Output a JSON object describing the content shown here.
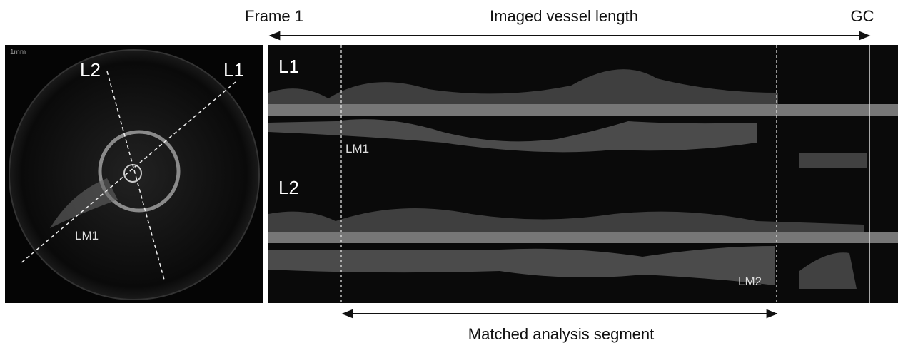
{
  "header": {
    "left": "Frame 1",
    "center": "Imaged vessel length",
    "right": "GC"
  },
  "cross_section": {
    "scale": "1mm",
    "labels": [
      "L2",
      "L1",
      "LM1"
    ]
  },
  "longitudinal": {
    "labels": [
      "L1",
      "LM1",
      "L2",
      "LM2"
    ]
  },
  "footer": "Matched analysis segment"
}
